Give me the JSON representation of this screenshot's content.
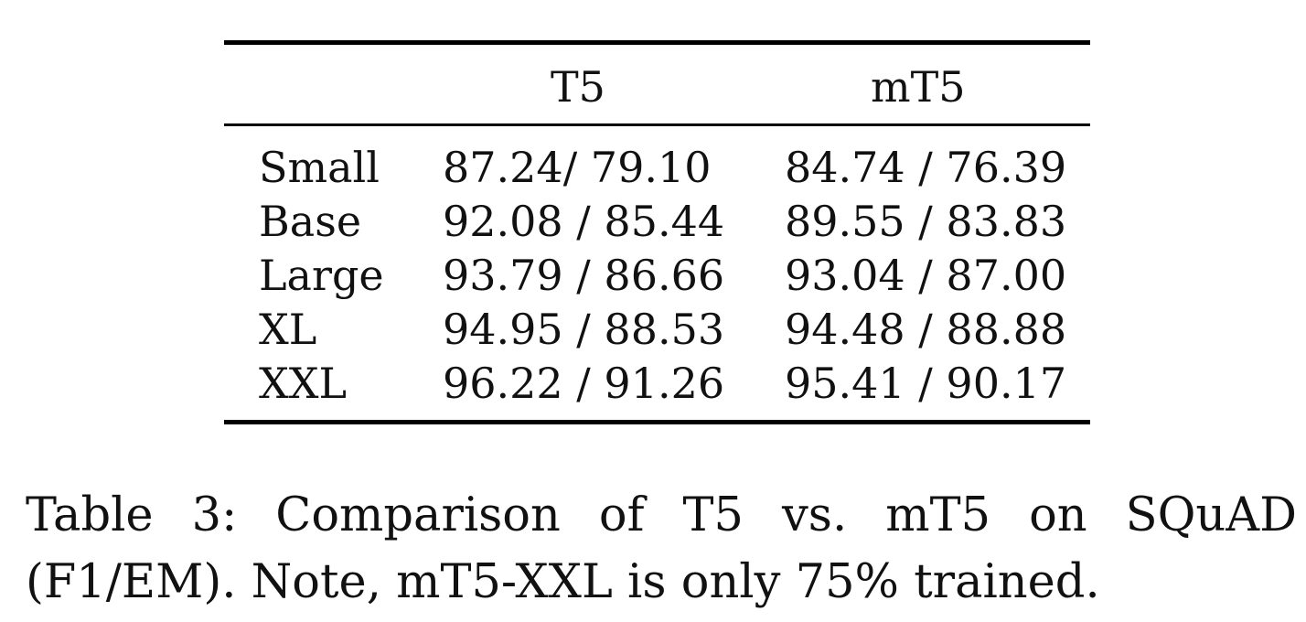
{
  "table": {
    "columns": [
      "",
      "T5",
      "mT5"
    ],
    "rows": [
      {
        "label": "Small",
        "t5": "87.24/ 79.10",
        "mt5": "84.74 / 76.39"
      },
      {
        "label": "Base",
        "t5": "92.08 / 85.44",
        "mt5": "89.55 / 83.83"
      },
      {
        "label": "Large",
        "t5": "93.79 / 86.66",
        "mt5": "93.04 / 87.00"
      },
      {
        "label": "XL",
        "t5": "94.95 / 88.53",
        "mt5": "94.48 / 88.88"
      },
      {
        "label": "XXL",
        "t5": "96.22 / 91.26",
        "mt5": "95.41 / 90.17"
      }
    ]
  },
  "caption": {
    "line1": "Table 3: Comparison of T5 vs. mT5 on SQuAD",
    "line2": "(F1/EM). Note, mT5-XXL is only 75% trained."
  }
}
